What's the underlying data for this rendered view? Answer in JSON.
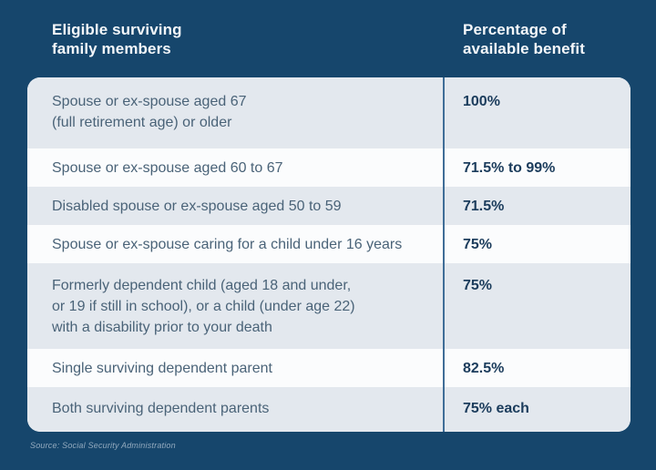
{
  "page": {
    "background_color": "#16466c",
    "source_note": "Source: Social Security Administration"
  },
  "header": {
    "left_title": "Eligible surviving\nfamily members",
    "right_title": "Percentage of\navailable benefit"
  },
  "table": {
    "card_color": "#fbfcfd",
    "alt_row_color": "#e3e8ee",
    "divider_color": "#3f6d97",
    "member_text_color": "#4a6378",
    "benefit_text_color": "#1b3c5c",
    "columns": [
      "Eligible surviving family members",
      "Percentage of available benefit"
    ],
    "rows": [
      {
        "member": "Spouse or ex-spouse aged 67\n(full retirement age) or older",
        "benefit": "100%"
      },
      {
        "member": "Spouse or ex-spouse aged 60 to 67",
        "benefit": "71.5% to 99%"
      },
      {
        "member": "Disabled spouse or ex-spouse aged 50 to 59",
        "benefit": "71.5%"
      },
      {
        "member": "Spouse or ex-spouse caring for a child under 16 years",
        "benefit": "75%"
      },
      {
        "member": "Formerly dependent child (aged 18 and under,\nor 19 if still in school), or a child (under age 22)\nwith a disability prior to your death",
        "benefit": "75%"
      },
      {
        "member": "Single surviving dependent parent",
        "benefit": "82.5%"
      },
      {
        "member": "Both surviving dependent parents",
        "benefit": "75% each"
      }
    ]
  }
}
